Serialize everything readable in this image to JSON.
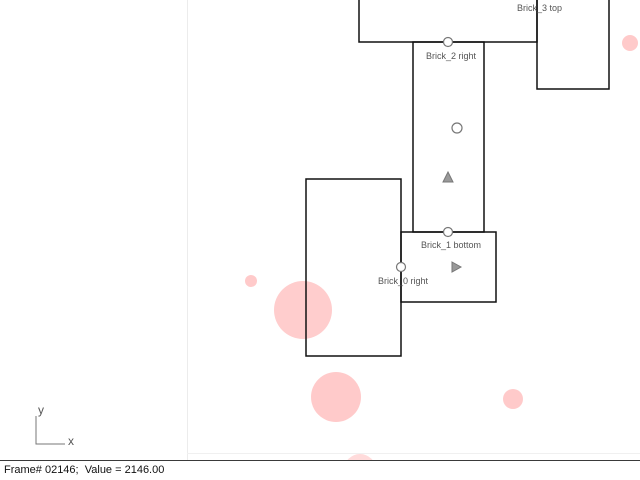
{
  "viewport": {
    "labels": {
      "brick3_top": "Brick_3 top",
      "brick2_right": "Brick_2 right",
      "brick1_bottom": "Brick_1 bottom",
      "brick0_right": "Brick_0 right"
    },
    "axis": {
      "y": "y",
      "x": "x"
    }
  },
  "status": {
    "frame": "Frame# 02146;",
    "value": "Value = 2146.00"
  },
  "colors": {
    "outline": "#111111",
    "handle": "#777777",
    "particle": "#ffb8b8",
    "divider": "#e8e8e8"
  }
}
